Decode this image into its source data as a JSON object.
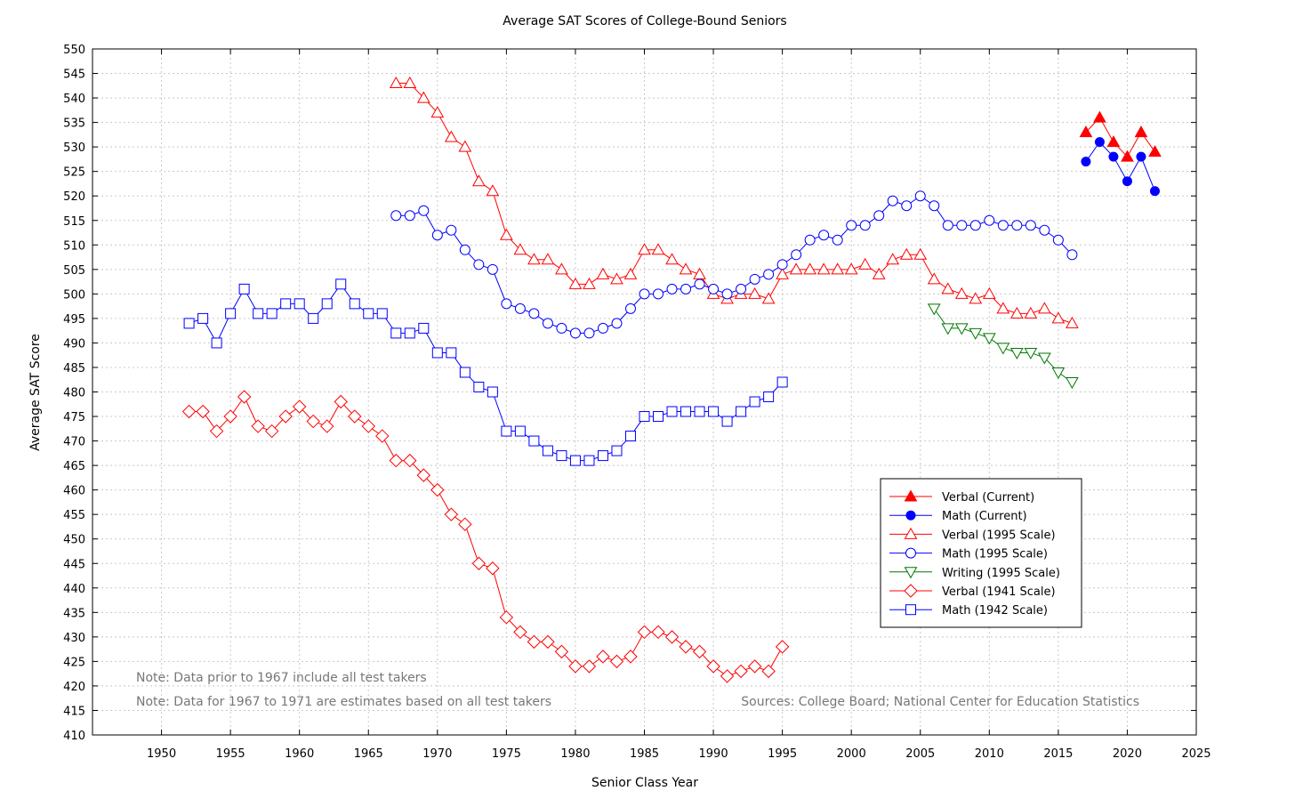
{
  "chart_data": {
    "type": "line",
    "title": "Average SAT Scores of College-Bound Seniors",
    "xlabel": "Senior Class Year",
    "ylabel": "Average SAT Score",
    "xlim": [
      1945,
      2025
    ],
    "ylim": [
      410,
      550
    ],
    "xticks": [
      1950,
      1955,
      1960,
      1965,
      1970,
      1975,
      1980,
      1985,
      1990,
      1995,
      2000,
      2005,
      2010,
      2015,
      2020,
      2025
    ],
    "yticks": [
      410,
      415,
      420,
      425,
      430,
      435,
      440,
      445,
      450,
      455,
      460,
      465,
      470,
      475,
      480,
      485,
      490,
      495,
      500,
      505,
      510,
      515,
      520,
      525,
      530,
      535,
      540,
      545,
      550
    ],
    "grid": true,
    "legend_position": "lower-right",
    "notes": [
      "Note: Data prior to 1967 include all test takers",
      "Note: Data for 1967 to 1971 are estimates based on all test takers"
    ],
    "source": "Sources: College Board; National Center for Education Statistics",
    "series": [
      {
        "name": "Verbal (Current)",
        "color": "#ff0000",
        "marker": "triangle-up",
        "filled": true,
        "x": [
          2017,
          2018,
          2019,
          2020,
          2021,
          2022
        ],
        "y": [
          533,
          536,
          531,
          528,
          533,
          529
        ]
      },
      {
        "name": "Math (Current)",
        "color": "#0000ff",
        "marker": "circle",
        "filled": true,
        "x": [
          2017,
          2018,
          2019,
          2020,
          2021,
          2022
        ],
        "y": [
          527,
          531,
          528,
          523,
          528,
          521
        ]
      },
      {
        "name": "Verbal (1995 Scale)",
        "color": "#ff0000",
        "marker": "triangle-up",
        "filled": false,
        "x": [
          1967,
          1968,
          1969,
          1970,
          1971,
          1972,
          1973,
          1974,
          1975,
          1976,
          1977,
          1978,
          1979,
          1980,
          1981,
          1982,
          1983,
          1984,
          1985,
          1986,
          1987,
          1988,
          1989,
          1990,
          1991,
          1992,
          1993,
          1994,
          1995,
          1996,
          1997,
          1998,
          1999,
          2000,
          2001,
          2002,
          2003,
          2004,
          2005,
          2006,
          2007,
          2008,
          2009,
          2010,
          2011,
          2012,
          2013,
          2014,
          2015,
          2016
        ],
        "y": [
          543,
          543,
          540,
          537,
          532,
          530,
          523,
          521,
          512,
          509,
          507,
          507,
          505,
          502,
          502,
          504,
          503,
          504,
          509,
          509,
          507,
          505,
          504,
          500,
          499,
          500,
          500,
          499,
          504,
          505,
          505,
          505,
          505,
          505,
          506,
          504,
          507,
          508,
          508,
          503,
          501,
          500,
          499,
          500,
          497,
          496,
          496,
          497,
          495,
          494
        ]
      },
      {
        "name": "Math (1995 Scale)",
        "color": "#0000ff",
        "marker": "circle",
        "filled": false,
        "x": [
          1967,
          1968,
          1969,
          1970,
          1971,
          1972,
          1973,
          1974,
          1975,
          1976,
          1977,
          1978,
          1979,
          1980,
          1981,
          1982,
          1983,
          1984,
          1985,
          1986,
          1987,
          1988,
          1989,
          1990,
          1991,
          1992,
          1993,
          1994,
          1995,
          1996,
          1997,
          1998,
          1999,
          2000,
          2001,
          2002,
          2003,
          2004,
          2005,
          2006,
          2007,
          2008,
          2009,
          2010,
          2011,
          2012,
          2013,
          2014,
          2015,
          2016
        ],
        "y": [
          516,
          516,
          517,
          512,
          513,
          509,
          506,
          505,
          498,
          497,
          496,
          494,
          493,
          492,
          492,
          493,
          494,
          497,
          500,
          500,
          501,
          501,
          502,
          501,
          500,
          501,
          503,
          504,
          506,
          508,
          511,
          512,
          511,
          514,
          514,
          516,
          519,
          518,
          520,
          518,
          514,
          514,
          514,
          515,
          514,
          514,
          514,
          513,
          511,
          508
        ]
      },
      {
        "name": "Writing (1995 Scale)",
        "color": "#007700",
        "marker": "triangle-down",
        "filled": false,
        "x": [
          2006,
          2007,
          2008,
          2009,
          2010,
          2011,
          2012,
          2013,
          2014,
          2015,
          2016
        ],
        "y": [
          497,
          493,
          493,
          492,
          491,
          489,
          488,
          488,
          487,
          484,
          482
        ]
      },
      {
        "name": "Verbal (1941 Scale)",
        "color": "#ff0000",
        "marker": "diamond",
        "filled": false,
        "x": [
          1952,
          1953,
          1954,
          1955,
          1956,
          1957,
          1958,
          1959,
          1960,
          1961,
          1962,
          1963,
          1964,
          1965,
          1966,
          1967,
          1968,
          1969,
          1970,
          1971,
          1972,
          1973,
          1974,
          1975,
          1976,
          1977,
          1978,
          1979,
          1980,
          1981,
          1982,
          1983,
          1984,
          1985,
          1986,
          1987,
          1988,
          1989,
          1990,
          1991,
          1992,
          1993,
          1994,
          1995
        ],
        "y": [
          476,
          476,
          472,
          475,
          479,
          473,
          472,
          475,
          477,
          474,
          473,
          478,
          475,
          473,
          471,
          466,
          466,
          463,
          460,
          455,
          453,
          445,
          444,
          434,
          431,
          429,
          429,
          427,
          424,
          424,
          426,
          425,
          426,
          431,
          431,
          430,
          428,
          427,
          424,
          422,
          423,
          424,
          423,
          428
        ]
      },
      {
        "name": "Math (1942 Scale)",
        "color": "#0000ff",
        "marker": "square",
        "filled": false,
        "x": [
          1952,
          1953,
          1954,
          1955,
          1956,
          1957,
          1958,
          1959,
          1960,
          1961,
          1962,
          1963,
          1964,
          1965,
          1966,
          1967,
          1968,
          1969,
          1970,
          1971,
          1972,
          1973,
          1974,
          1975,
          1976,
          1977,
          1978,
          1979,
          1980,
          1981,
          1982,
          1983,
          1984,
          1985,
          1986,
          1987,
          1988,
          1989,
          1990,
          1991,
          1992,
          1993,
          1994,
          1995
        ],
        "y": [
          494,
          495,
          490,
          496,
          501,
          496,
          496,
          498,
          498,
          495,
          498,
          502,
          498,
          496,
          496,
          492,
          492,
          493,
          488,
          488,
          484,
          481,
          480,
          472,
          472,
          470,
          468,
          467,
          466,
          466,
          467,
          468,
          471,
          475,
          475,
          476,
          476,
          476,
          476,
          474,
          476,
          478,
          479,
          482
        ]
      }
    ]
  }
}
